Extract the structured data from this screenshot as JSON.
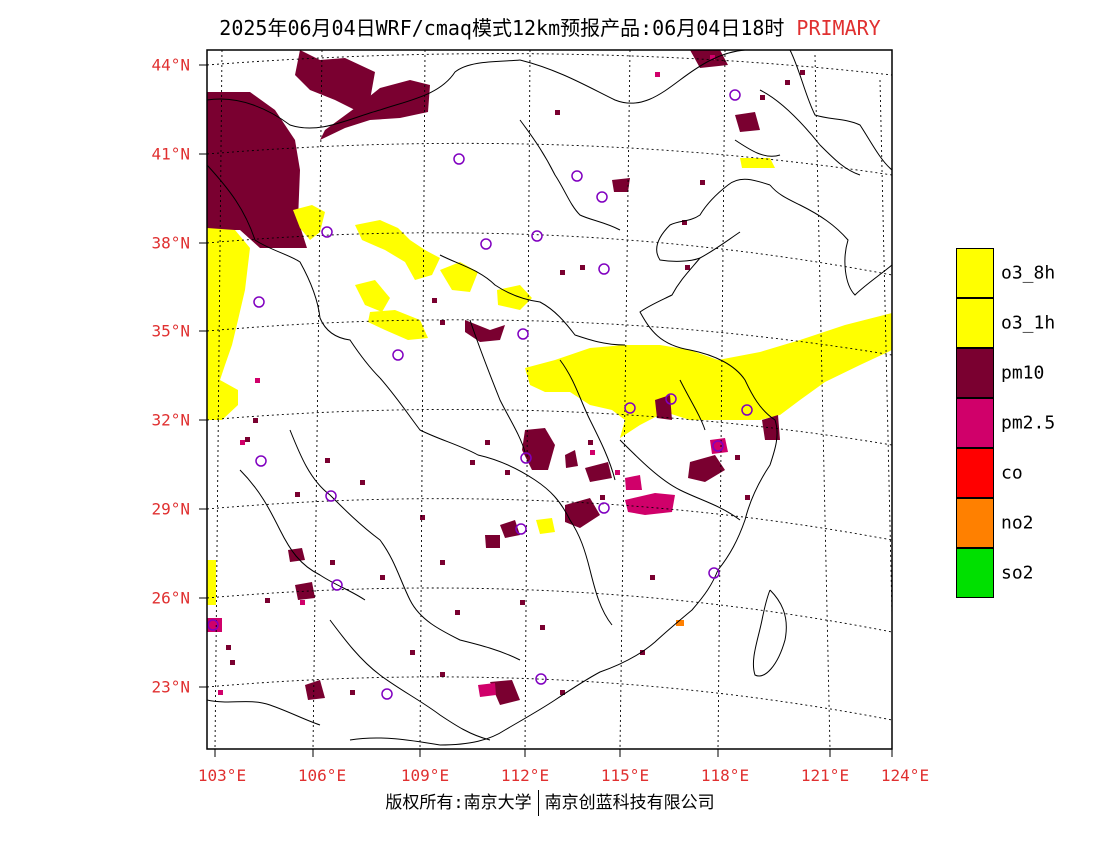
{
  "title": {
    "main": "2025年06月04日WRF/cmaq模式12km预报产品:06月04日18时",
    "tag": "PRIMARY"
  },
  "map": {
    "lat_labels": [
      "44°N",
      "41°N",
      "38°N",
      "35°N",
      "32°N",
      "29°N",
      "26°N",
      "23°N"
    ],
    "lon_labels": [
      "103°E",
      "106°E",
      "109°E",
      "112°E",
      "115°E",
      "118°E",
      "121°E",
      "124°E"
    ],
    "station_marker_icon": "circle-icon"
  },
  "legend": [
    {
      "label": "o3_8h",
      "color": "#ffff00"
    },
    {
      "label": "o3_1h",
      "color": "#ffff00"
    },
    {
      "label": "pm10",
      "color": "#7a0030"
    },
    {
      "label": "pm2.5",
      "color": "#d0006a"
    },
    {
      "label": "co",
      "color": "#ff0000"
    },
    {
      "label": "no2",
      "color": "#ff8000"
    },
    {
      "label": "so2",
      "color": "#00e000"
    }
  ],
  "footer": {
    "left": "版权所有:南京大学",
    "right": "南京创蓝科技有限公司"
  }
}
